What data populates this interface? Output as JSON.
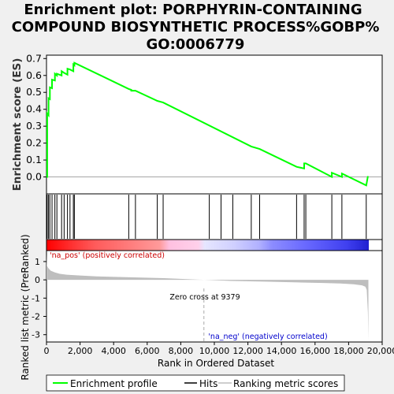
{
  "title_lines": [
    "Enrichment plot: PORPHYRIN-CONTAINING",
    "COMPOUND BIOSYNTHETIC PROCESS%GOBP%",
    "GO:0006779"
  ],
  "legend": {
    "enrichment": "Enrichment profile",
    "hits": "Hits",
    "ranking": "Ranking metric scores"
  },
  "annotations": {
    "na_pos": "'na_pos' (positively correlated)",
    "na_neg": "'na_neg' (negatively correlated)",
    "zero_cross": "Zero cross at 9379"
  },
  "colors": {
    "enrichment_line": "#00ff00",
    "hits": "#000000",
    "metric_fill": "#bebebe",
    "pos_text": "#cc0000",
    "neg_text": "#0000cc",
    "zero_line": "#aaaaaa"
  },
  "chart_data": [
    {
      "type": "line",
      "name": "enrichment",
      "ylabel": "Enrichment score (ES)",
      "xlim": [
        0,
        20000
      ],
      "ylim": [
        -0.1,
        0.72
      ],
      "yticks": [
        0.0,
        0.1,
        0.2,
        0.3,
        0.4,
        0.5,
        0.6,
        0.7
      ],
      "x": [
        0,
        40,
        40,
        120,
        120,
        200,
        200,
        330,
        330,
        500,
        500,
        620,
        620,
        900,
        900,
        1050,
        1050,
        1250,
        1250,
        1400,
        1400,
        1600,
        1600,
        1660,
        1660,
        4900,
        4900,
        5050,
        5050,
        5300,
        5300,
        6600,
        6600,
        6950,
        6950,
        12200,
        12200,
        12700,
        12700,
        14900,
        14900,
        15350,
        15350,
        15450,
        15450,
        17000,
        17000,
        17600,
        17600,
        19050,
        19050,
        19150
      ],
      "y": [
        0.0,
        0.0,
        0.375,
        0.365,
        0.465,
        0.46,
        0.53,
        0.525,
        0.575,
        0.57,
        0.61,
        0.6,
        0.61,
        0.6,
        0.625,
        0.615,
        0.615,
        0.605,
        0.64,
        0.635,
        0.635,
        0.625,
        0.665,
        0.66,
        0.675,
        0.52,
        0.52,
        0.515,
        0.51,
        0.51,
        0.51,
        0.45,
        0.45,
        0.44,
        0.44,
        0.18,
        0.18,
        0.165,
        0.165,
        0.06,
        0.06,
        0.05,
        0.08,
        0.08,
        0.08,
        0.0,
        0.025,
        0.0,
        0.02,
        -0.05,
        -0.05,
        0.005
      ]
    },
    {
      "type": "scatter",
      "name": "hits",
      "x": [
        40,
        120,
        200,
        330,
        500,
        620,
        900,
        1050,
        1250,
        1400,
        1600,
        1660,
        4900,
        5300,
        6600,
        6950,
        9700,
        10400,
        11100,
        12200,
        12700,
        14900,
        15350,
        15450,
        17000,
        17600,
        19050
      ]
    },
    {
      "type": "area",
      "name": "Ranking metric scores",
      "xlabel": "Rank in Ordered Dataset",
      "ylabel": "Ranked list metric (PreRanked)",
      "xlim": [
        0,
        20000
      ],
      "ylim": [
        -3.4,
        1.6
      ],
      "xticks": [
        0,
        2000,
        4000,
        6000,
        8000,
        10000,
        12000,
        14000,
        16000,
        18000,
        20000
      ],
      "yticks": [
        1,
        0,
        -1,
        -2,
        -3
      ],
      "zero_cross": 9379,
      "x": [
        0,
        20,
        100,
        250,
        500,
        800,
        1200,
        2000,
        3000,
        5000,
        7000,
        9379,
        11000,
        13000,
        15000,
        16500,
        17500,
        18300,
        18800,
        19000,
        19080,
        19150,
        19180
      ],
      "y": [
        1.4,
        0.8,
        0.65,
        0.5,
        0.4,
        0.33,
        0.28,
        0.24,
        0.19,
        0.14,
        0.09,
        0.0,
        -0.06,
        -0.1,
        -0.14,
        -0.17,
        -0.2,
        -0.24,
        -0.3,
        -0.38,
        -0.55,
        -1.8,
        -3.3
      ]
    }
  ]
}
